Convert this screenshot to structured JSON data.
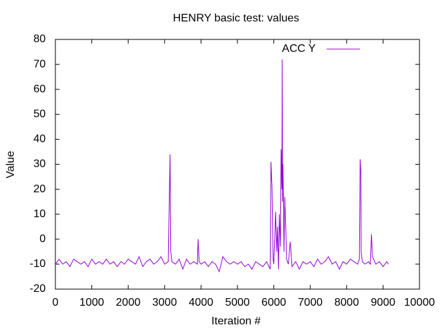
{
  "chart_data": {
    "type": "line",
    "title": "HENRY basic test: values",
    "xlabel": "Iteration #",
    "ylabel": "Value",
    "x": [
      0,
      100,
      200,
      300,
      400,
      500,
      600,
      700,
      800,
      900,
      1000,
      1100,
      1200,
      1300,
      1400,
      1500,
      1600,
      1700,
      1800,
      1900,
      2000,
      2100,
      2200,
      2300,
      2400,
      2500,
      2600,
      2700,
      2800,
      2900,
      3000,
      3100,
      3130,
      3150,
      3170,
      3200,
      3300,
      3400,
      3500,
      3600,
      3700,
      3800,
      3900,
      3920,
      3950,
      4000,
      4100,
      4200,
      4300,
      4400,
      4500,
      4600,
      4700,
      4800,
      4900,
      5000,
      5100,
      5200,
      5300,
      5400,
      5500,
      5600,
      5700,
      5800,
      5900,
      5920,
      5950,
      5980,
      6000,
      6050,
      6080,
      6100,
      6130,
      6150,
      6180,
      6200,
      6220,
      6230,
      6240,
      6250,
      6280,
      6300,
      6330,
      6350,
      6400,
      6450,
      6500,
      6600,
      6700,
      6800,
      6900,
      7000,
      7100,
      7200,
      7300,
      7400,
      7500,
      7600,
      7700,
      7800,
      7900,
      8000,
      8100,
      8200,
      8300,
      8350,
      8370,
      8390,
      8400,
      8430,
      8500,
      8600,
      8650,
      8680,
      8710,
      8800,
      8900,
      9000,
      9100,
      9150
    ],
    "series": [
      {
        "name": "ACC Y",
        "color": "#9400d3",
        "values": [
          -10,
          -8,
          -10,
          -9,
          -11,
          -8,
          -9,
          -10,
          -9,
          -11,
          -8,
          -10,
          -9,
          -10,
          -8,
          -10,
          -9,
          -11,
          -9,
          -10,
          -8,
          -9,
          -10,
          -7,
          -11,
          -9,
          -8,
          -10,
          -9,
          -7,
          -10,
          -9,
          17,
          34,
          -5,
          -9,
          -10,
          -8,
          -12,
          -8,
          -10,
          -9,
          -10,
          0,
          -9,
          -10,
          -9,
          -11,
          -9,
          -10,
          -13,
          -7,
          -9,
          -10,
          -9,
          -10,
          -9,
          -11,
          -10,
          -12,
          -9,
          -10,
          -11,
          -9,
          -12,
          31,
          21,
          -8,
          -10,
          11,
          -5,
          5,
          -12,
          10,
          -3,
          36,
          20,
          72,
          15,
          30,
          -5,
          17,
          3,
          -8,
          -10,
          -1,
          -11,
          -9,
          -12,
          -9,
          -10,
          -9,
          -11,
          -8,
          -10,
          -9,
          -7,
          -10,
          -9,
          -12,
          -9,
          -10,
          -8,
          -9,
          -10,
          -8,
          32,
          27,
          -5,
          -9,
          -10,
          -9,
          -10,
          2,
          -7,
          -10,
          -9,
          -11,
          -9,
          -10
        ]
      }
    ],
    "xlim": [
      0,
      10000
    ],
    "xticks": [
      0,
      1000,
      2000,
      3000,
      4000,
      5000,
      6000,
      7000,
      8000,
      9000,
      10000
    ],
    "ylim": [
      -20,
      80
    ],
    "yticks": [
      -20,
      -10,
      0,
      10,
      20,
      30,
      40,
      50,
      60,
      70,
      80
    ],
    "legend": "top right"
  }
}
